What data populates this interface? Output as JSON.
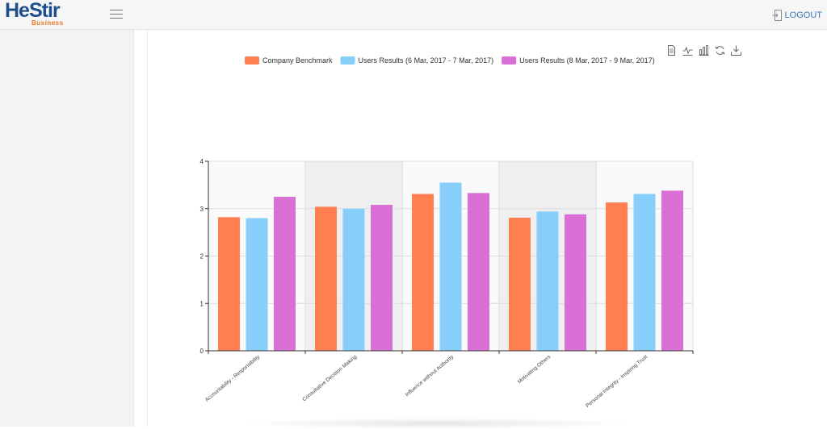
{
  "header": {
    "logo_text": "HeStir",
    "logo_sub": "Business",
    "logout_label": "LOGOUT"
  },
  "toolbox": {
    "icons": [
      "data-view-icon",
      "line-chart-icon",
      "bar-chart-icon",
      "restore-icon",
      "save-image-icon"
    ]
  },
  "chart_data": {
    "type": "bar",
    "title": "",
    "xlabel": "",
    "ylabel": "",
    "ylim": [
      0,
      4
    ],
    "yticks": [
      "0",
      "1",
      "2",
      "3",
      "4"
    ],
    "grid": true,
    "legend_position": "top-center",
    "categories": [
      "Accountability - Responsibility",
      "Consultative Decision Making",
      "Influence without Authority",
      "Motivating Others",
      "Personal Integrity - Inspiring Trust"
    ],
    "series": [
      {
        "name": "Company Benchmark",
        "color": "#ff7f50",
        "values": [
          2.82,
          3.04,
          3.31,
          2.81,
          3.13
        ]
      },
      {
        "name": "Users Results (6 Mar, 2017 - 7 Mar, 2017)",
        "color": "#87cefa",
        "values": [
          2.8,
          3.0,
          3.55,
          2.94,
          3.31
        ]
      },
      {
        "name": "Users Results (8 Mar, 2017 - 9 Mar, 2017)",
        "color": "#da70d6",
        "values": [
          3.25,
          3.08,
          3.33,
          2.88,
          3.38
        ]
      }
    ]
  }
}
